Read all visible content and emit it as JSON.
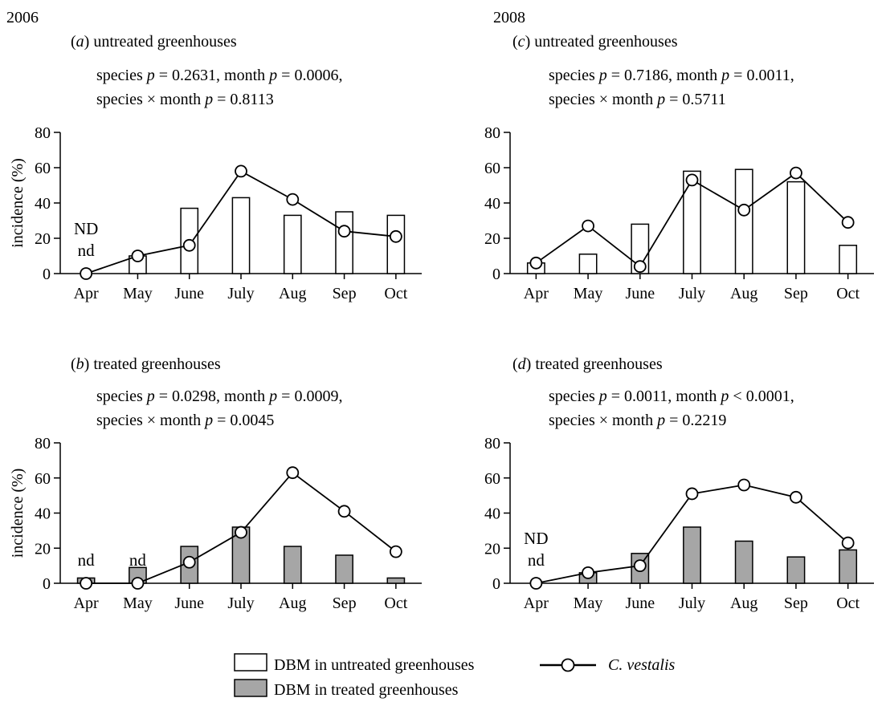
{
  "years": [
    "2006",
    "2008"
  ],
  "ylabel": "incidence (%)",
  "legend": {
    "untreated": "DBM in untreated greenhouses",
    "treated": "DBM in treated greenhouses",
    "line": "C. vestalis"
  },
  "colors": {
    "untreated_fill": "#ffffff",
    "treated_fill": "#a6a6a6",
    "stroke": "#000000",
    "marker_fill": "#ffffff"
  },
  "chart_data": [
    {
      "type": "bar",
      "panel": "a",
      "year": "2006",
      "title_letter": "a",
      "title_rest": "untreated greenhouses",
      "stats": [
        "species p = 0.2631, month p = 0.0006,",
        "species × month p = 0.8113"
      ],
      "categories": [
        "Apr",
        "May",
        "June",
        "July",
        "Aug",
        "Sep",
        "Oct"
      ],
      "ylim": [
        0,
        80
      ],
      "yticks": [
        0,
        20,
        40,
        60,
        80
      ],
      "bar_style": "untreated",
      "series": [
        {
          "kind": "bar",
          "values": [
            0,
            10,
            37,
            43,
            33,
            35,
            33
          ]
        },
        {
          "kind": "line",
          "values": [
            0,
            10,
            16,
            58,
            42,
            24,
            21
          ]
        }
      ],
      "annotations": [
        {
          "category": "Apr",
          "lines": [
            "ND",
            "nd"
          ]
        }
      ],
      "show_ylabel": true
    },
    {
      "type": "bar",
      "panel": "b",
      "year": "2006",
      "title_letter": "b",
      "title_rest": "treated  greenhouses",
      "stats": [
        "species p = 0.0298, month p = 0.0009,",
        "species × month p = 0.0045"
      ],
      "categories": [
        "Apr",
        "May",
        "June",
        "July",
        "Aug",
        "Sep",
        "Oct"
      ],
      "ylim": [
        0,
        80
      ],
      "yticks": [
        0,
        20,
        40,
        60,
        80
      ],
      "bar_style": "treated",
      "series": [
        {
          "kind": "bar",
          "values": [
            3,
            9,
            21,
            32,
            21,
            16,
            3
          ]
        },
        {
          "kind": "line",
          "values": [
            0,
            0,
            12,
            29,
            63,
            41,
            18
          ]
        }
      ],
      "annotations": [
        {
          "category": "Apr",
          "lines": [
            "nd"
          ]
        },
        {
          "category": "May",
          "lines": [
            "nd"
          ]
        }
      ],
      "show_ylabel": true
    },
    {
      "type": "bar",
      "panel": "c",
      "year": "2008",
      "title_letter": "c",
      "title_rest": "untreated greenhouses",
      "stats": [
        "species p = 0.7186, month p = 0.0011,",
        "species × month p = 0.5711"
      ],
      "categories": [
        "Apr",
        "May",
        "June",
        "July",
        "Aug",
        "Sep",
        "Oct"
      ],
      "ylim": [
        0,
        80
      ],
      "yticks": [
        0,
        20,
        40,
        60,
        80
      ],
      "bar_style": "untreated",
      "series": [
        {
          "kind": "bar",
          "values": [
            6,
            11,
            28,
            58,
            59,
            52,
            16
          ]
        },
        {
          "kind": "line",
          "values": [
            6,
            27,
            4,
            53,
            36,
            57,
            29
          ]
        }
      ],
      "annotations": [],
      "show_ylabel": false
    },
    {
      "type": "bar",
      "panel": "d",
      "year": "2008",
      "title_letter": "d",
      "title_rest": "treated  greenhouses",
      "stats": [
        "species p = 0.0011, month p < 0.0001,",
        "species × month p = 0.2219"
      ],
      "categories": [
        "Apr",
        "May",
        "June",
        "July",
        "Aug",
        "Sep",
        "Oct"
      ],
      "ylim": [
        0,
        80
      ],
      "yticks": [
        0,
        20,
        40,
        60,
        80
      ],
      "bar_style": "treated",
      "series": [
        {
          "kind": "bar",
          "values": [
            0,
            6,
            17,
            32,
            24,
            15,
            19
          ]
        },
        {
          "kind": "line",
          "values": [
            0,
            6,
            10,
            51,
            56,
            49,
            23
          ]
        }
      ],
      "annotations": [
        {
          "category": "Apr",
          "lines": [
            "ND",
            "nd"
          ]
        }
      ],
      "show_ylabel": false
    }
  ]
}
